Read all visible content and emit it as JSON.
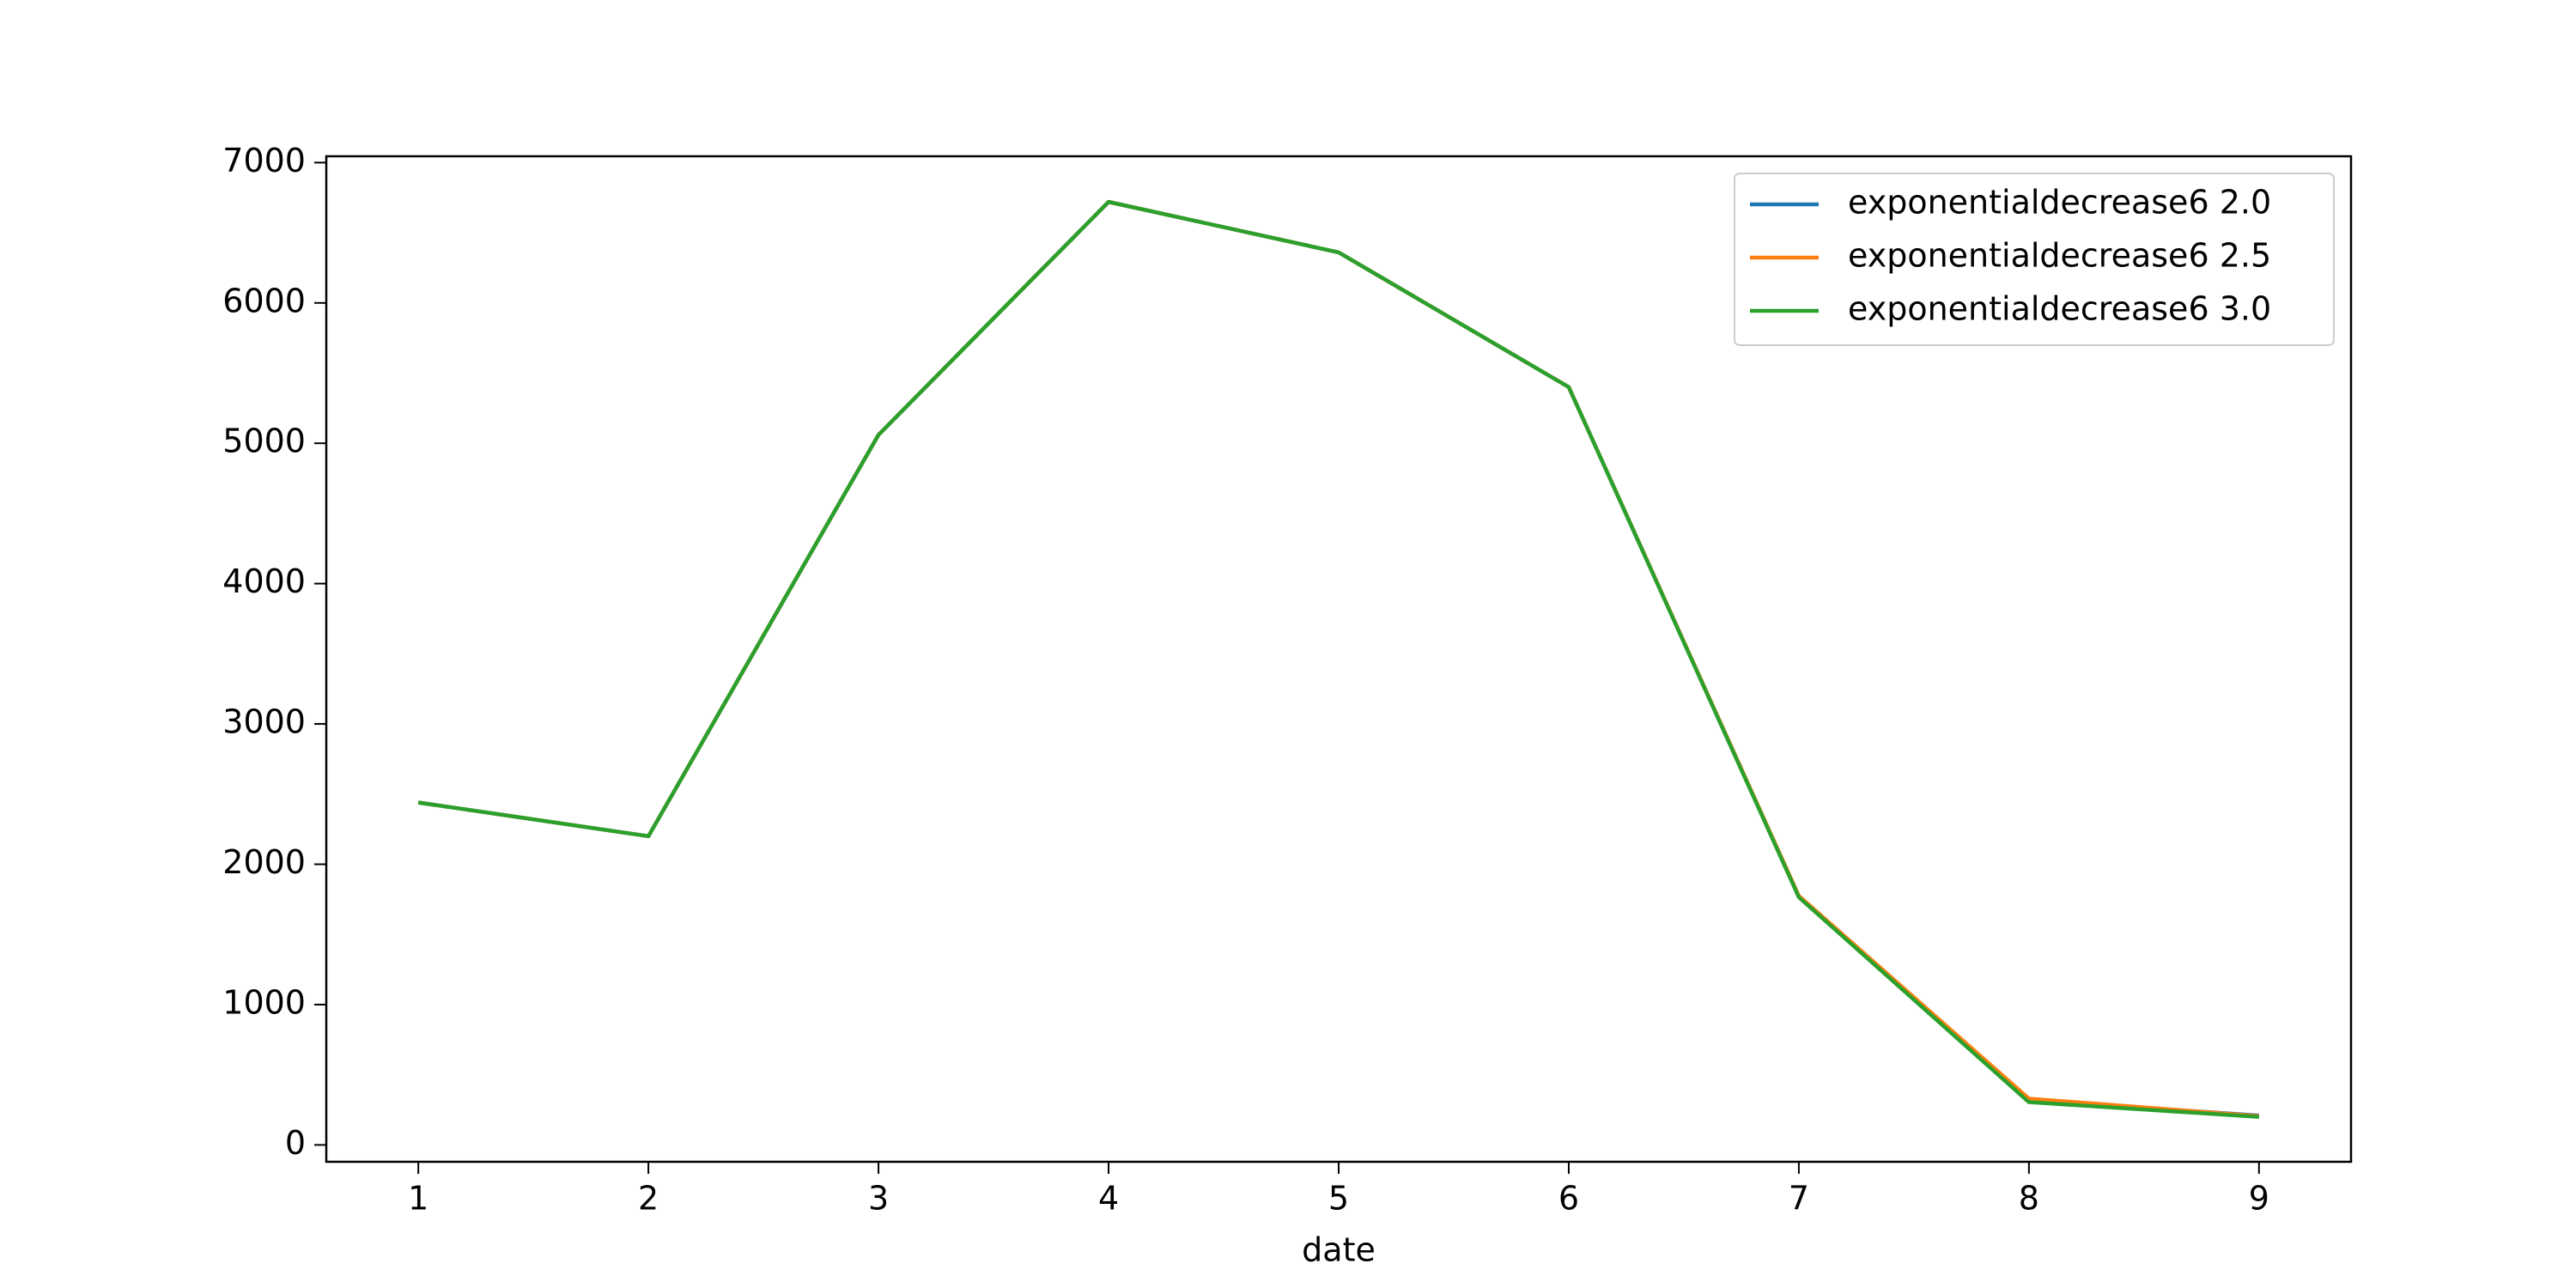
{
  "chart_data": {
    "type": "line",
    "x_label": "date",
    "x": [
      1,
      2,
      3,
      4,
      5,
      6,
      7,
      8,
      9
    ],
    "series": [
      {
        "name": "exponentialdecrease6 2.0",
        "color": "#1f77b4",
        "values": [
          2440,
          2200,
          5060,
          6720,
          6360,
          5400,
          1770,
          320,
          210
        ]
      },
      {
        "name": "exponentialdecrease6 2.5",
        "color": "#ff7f0e",
        "values": [
          2440,
          2200,
          5060,
          6720,
          6360,
          5400,
          1775,
          330,
          205
        ]
      },
      {
        "name": "exponentialdecrease6 3.0",
        "color": "#2ca02c",
        "values": [
          2440,
          2200,
          5060,
          6720,
          6360,
          5400,
          1765,
          305,
          200
        ]
      }
    ],
    "xlim": [
      0.6,
      9.4
    ],
    "xticks": [
      1,
      2,
      3,
      4,
      5,
      6,
      7,
      8,
      9
    ],
    "ylim": [
      -120,
      7045
    ],
    "yticks": [
      0,
      1000,
      2000,
      3000,
      4000,
      5000,
      6000,
      7000
    ],
    "legend": "upper right",
    "grid": false
  }
}
